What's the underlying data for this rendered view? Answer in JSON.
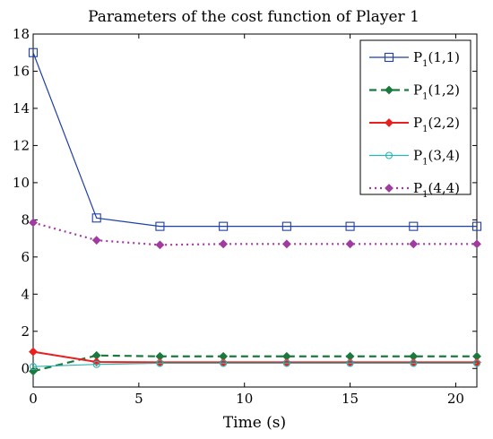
{
  "chart_data": {
    "type": "line",
    "title": "Parameters of the cost function of Player 1",
    "xlabel": "Time (s)",
    "ylabel": "",
    "xlim": [
      0,
      21
    ],
    "ylim": [
      -1,
      18
    ],
    "xticks": [
      0,
      5,
      10,
      15,
      20
    ],
    "yticks": [
      0,
      2,
      4,
      6,
      8,
      10,
      12,
      14,
      16,
      18
    ],
    "grid": false,
    "legend_position": "top-right",
    "x": [
      0,
      3,
      6,
      9,
      12,
      15,
      18,
      21
    ],
    "series": [
      {
        "name": "P_1(1,1)",
        "label_main": "P",
        "label_sub": "1",
        "label_rest": "(1,1)",
        "color": "#1f3fa8",
        "line": "solid",
        "marker": "square-open",
        "values": [
          17.0,
          8.1,
          7.65,
          7.65,
          7.65,
          7.65,
          7.65,
          7.65
        ]
      },
      {
        "name": "P_1(1,2)",
        "label_main": "P",
        "label_sub": "1",
        "label_rest": "(1,2)",
        "color": "#1a7a3c",
        "line": "dashed",
        "marker": "diamond-filled",
        "values": [
          -0.15,
          0.7,
          0.65,
          0.65,
          0.65,
          0.65,
          0.65,
          0.65
        ]
      },
      {
        "name": "P_1(2,2)",
        "label_main": "P",
        "label_sub": "1",
        "label_rest": "(2,2)",
        "color": "#e8201f",
        "line": "solid",
        "marker": "diamond-filled",
        "values": [
          0.9,
          0.35,
          0.33,
          0.33,
          0.33,
          0.33,
          0.33,
          0.33
        ]
      },
      {
        "name": "P_1(3,4)",
        "label_main": "P",
        "label_sub": "1",
        "label_rest": "(3,4)",
        "color": "#2bb5b2",
        "line": "solid",
        "marker": "circle-open",
        "values": [
          0.1,
          0.22,
          0.28,
          0.28,
          0.28,
          0.28,
          0.28,
          0.28
        ]
      },
      {
        "name": "P_1(4,4)",
        "label_main": "P",
        "label_sub": "1",
        "label_rest": "(4,4)",
        "color": "#a03ca0",
        "line": "dotted",
        "marker": "diamond-filled",
        "values": [
          7.85,
          6.9,
          6.65,
          6.7,
          6.7,
          6.7,
          6.7,
          6.7
        ]
      }
    ]
  }
}
